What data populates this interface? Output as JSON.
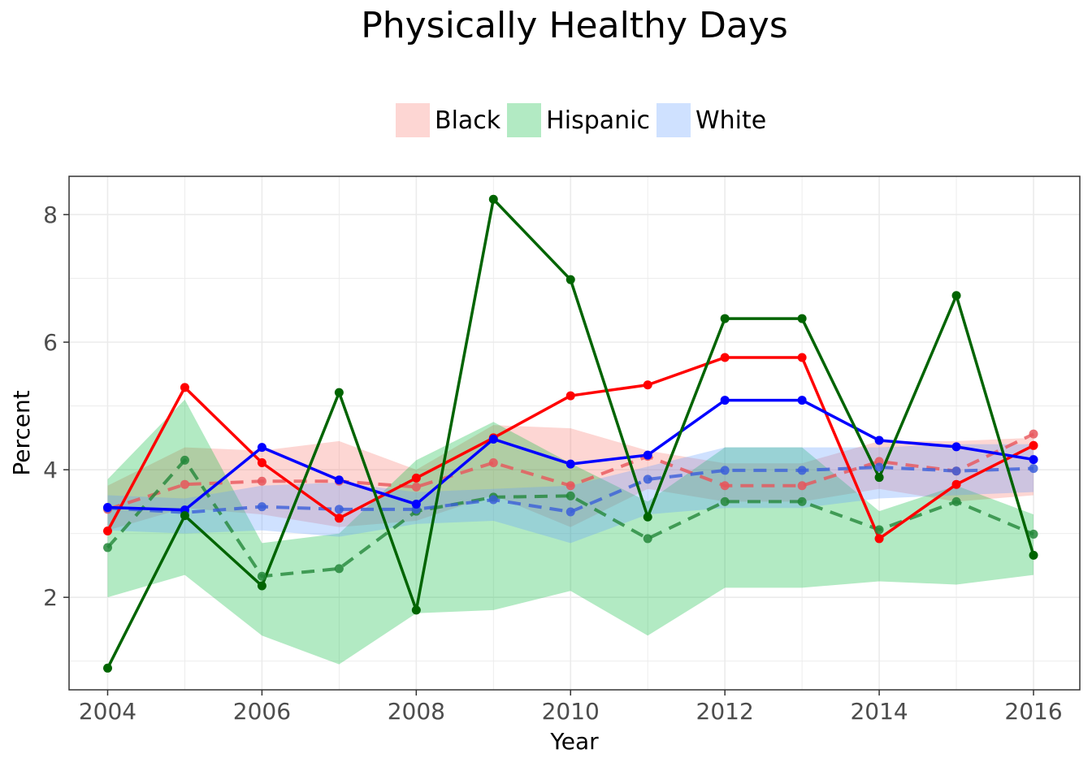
{
  "chart_data": {
    "type": "line",
    "title": "Physically Healthy Days",
    "xlabel": "Year",
    "ylabel": "Percent",
    "xlim": [
      2003.5,
      2016.6
    ],
    "ylim": [
      0.55,
      8.6
    ],
    "xticks": [
      2004,
      2006,
      2008,
      2010,
      2012,
      2014,
      2016
    ],
    "yticks": [
      2,
      4,
      6,
      8
    ],
    "grid": true,
    "legend_position": "top",
    "legend": [
      {
        "name": "Black",
        "color": "#f8766d"
      },
      {
        "name": "Hispanic",
        "color": "#00ba38"
      },
      {
        "name": "White",
        "color": "#619cff"
      }
    ],
    "x": [
      2004,
      2005,
      2006,
      2007,
      2008,
      2009,
      2010,
      2011,
      2012,
      2013,
      2014,
      2015,
      2016
    ],
    "bands": [
      {
        "name": "Black",
        "color": "#f8766d",
        "lower": [
          3.05,
          3.4,
          3.3,
          3.1,
          3.2,
          3.6,
          3.1,
          3.7,
          3.5,
          3.5,
          3.7,
          3.5,
          3.6
        ],
        "upper": [
          3.75,
          4.35,
          4.3,
          4.45,
          4.0,
          4.7,
          4.65,
          4.3,
          4.1,
          4.1,
          4.45,
          4.45,
          4.5
        ]
      },
      {
        "name": "Hispanic",
        "color": "#00ba38",
        "lower": [
          2.0,
          2.35,
          1.4,
          0.95,
          1.75,
          1.8,
          2.1,
          1.4,
          2.15,
          2.15,
          2.25,
          2.2,
          2.35
        ],
        "upper": [
          3.85,
          5.1,
          2.85,
          3.0,
          4.15,
          4.75,
          4.1,
          3.5,
          4.35,
          4.35,
          3.35,
          3.75,
          3.3
        ]
      },
      {
        "name": "White",
        "color": "#619cff",
        "lower": [
          3.05,
          3.0,
          3.05,
          2.95,
          3.15,
          3.2,
          2.85,
          3.3,
          3.4,
          3.4,
          3.55,
          3.6,
          3.65
        ],
        "upper": [
          3.6,
          3.55,
          3.75,
          3.8,
          3.65,
          3.7,
          3.75,
          4.05,
          4.35,
          4.35,
          4.35,
          4.4,
          4.4
        ]
      }
    ],
    "series": [
      {
        "name": "Black",
        "style": "dashed",
        "color": "#e8555a",
        "values": [
          3.38,
          3.77,
          3.82,
          3.82,
          3.73,
          4.11,
          3.75,
          4.21,
          3.75,
          3.75,
          4.13,
          3.98,
          4.56
        ]
      },
      {
        "name": "Hispanic",
        "style": "dashed",
        "color": "#23873a",
        "values": [
          2.78,
          4.15,
          2.33,
          2.45,
          3.35,
          3.57,
          3.59,
          2.92,
          3.5,
          3.5,
          3.06,
          3.5,
          2.99
        ]
      },
      {
        "name": "White",
        "style": "dashed",
        "color": "#3b5fd9",
        "values": [
          3.4,
          3.33,
          3.42,
          3.38,
          3.38,
          3.53,
          3.34,
          3.85,
          3.99,
          3.99,
          4.04,
          3.98,
          4.02
        ]
      },
      {
        "name": "Black",
        "style": "solid",
        "color": "#ff0000",
        "values": [
          3.04,
          5.29,
          4.11,
          3.24,
          3.87,
          4.5,
          5.16,
          5.33,
          5.76,
          5.76,
          2.92,
          3.77,
          4.38
        ]
      },
      {
        "name": "White",
        "style": "solid",
        "color": "#0000ff",
        "values": [
          3.41,
          3.37,
          4.35,
          3.84,
          3.46,
          4.48,
          4.09,
          4.23,
          5.09,
          5.09,
          4.46,
          4.36,
          4.16
        ]
      },
      {
        "name": "Hispanic",
        "style": "solid",
        "color": "#006400",
        "values": [
          0.89,
          3.28,
          2.18,
          5.21,
          1.8,
          8.24,
          6.98,
          3.26,
          6.37,
          6.37,
          3.88,
          6.73,
          2.66
        ]
      }
    ]
  }
}
